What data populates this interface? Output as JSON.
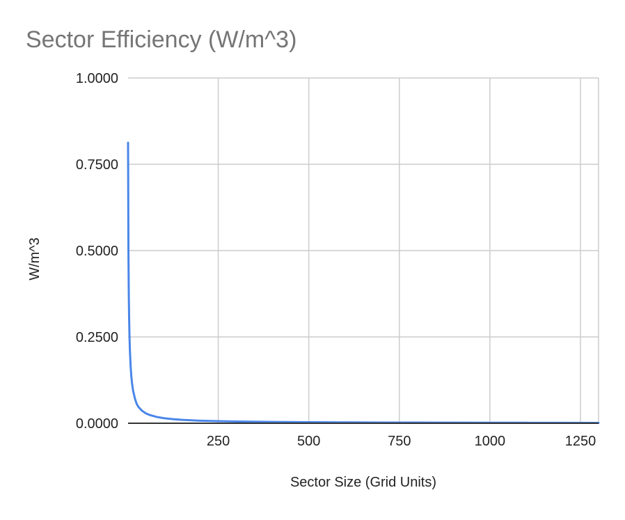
{
  "chart_data": {
    "type": "line",
    "title": "Sector Efficiency (W/m^3)",
    "xlabel": "Sector Size (Grid Units)",
    "ylabel": "W/m^3",
    "xlim": [
      1,
      1300
    ],
    "ylim": [
      0,
      1
    ],
    "x_ticks": [
      250,
      500,
      750,
      1000,
      1250
    ],
    "x_tick_labels": [
      "250",
      "500",
      "750",
      "1000",
      "1250"
    ],
    "y_ticks": [
      0,
      0.25,
      0.5,
      0.75,
      1
    ],
    "y_tick_labels": [
      "0.0000",
      "0.2500",
      "0.5000",
      "0.7500",
      "1.0000"
    ],
    "grid": true,
    "legend": "none",
    "series": [
      {
        "name": "W/m^3",
        "color": "#4a86e8",
        "x": [
          1,
          2,
          3,
          4,
          5,
          6,
          8,
          10,
          12,
          15,
          20,
          25,
          30,
          40,
          50,
          60,
          80,
          100,
          125,
          150,
          200,
          250,
          300,
          400,
          500,
          600,
          700,
          800,
          900,
          1000,
          1100,
          1200,
          1300
        ],
        "y": [
          0.8125,
          0.5,
          0.375,
          0.3,
          0.25,
          0.2143,
          0.1667,
          0.1364,
          0.1154,
          0.0938,
          0.0714,
          0.0556,
          0.0469,
          0.0357,
          0.0288,
          0.0242,
          0.0183,
          0.0147,
          0.0118,
          0.0099,
          0.0074,
          0.006,
          0.005,
          0.0037,
          0.003,
          0.0025,
          0.0021,
          0.0019,
          0.0017,
          0.0015,
          0.0014,
          0.0012,
          0.0011
        ]
      }
    ]
  }
}
